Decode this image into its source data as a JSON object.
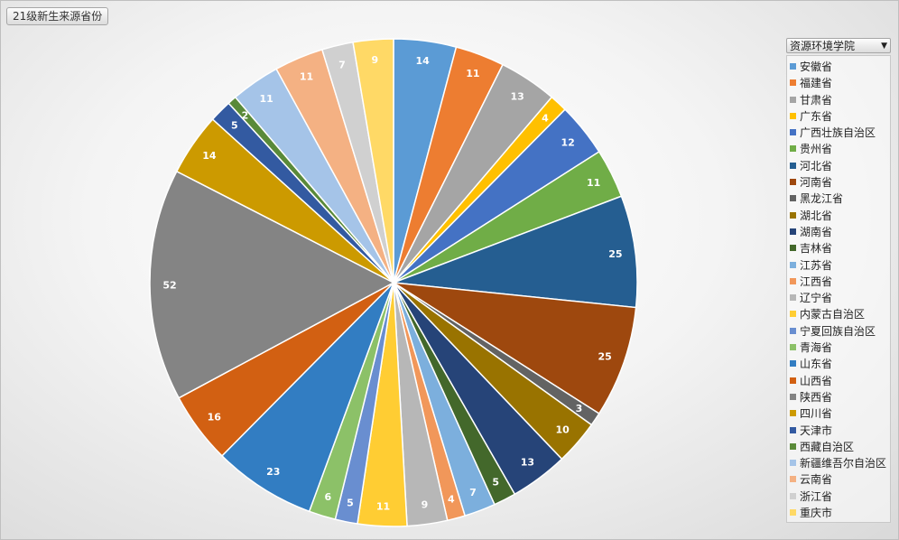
{
  "header": {
    "title": "21级新生来源省份"
  },
  "legend": {
    "filter_label": "资源环境学院"
  },
  "chart_data": {
    "type": "pie",
    "title": "21级新生来源省份",
    "categories": [
      "安徽省",
      "福建省",
      "甘肃省",
      "广东省",
      "广西壮族自治区",
      "贵州省",
      "河北省",
      "河南省",
      "黑龙江省",
      "湖北省",
      "湖南省",
      "吉林省",
      "江苏省",
      "江西省",
      "辽宁省",
      "内蒙古自治区",
      "宁夏回族自治区",
      "青海省",
      "山东省",
      "山西省",
      "陕西省",
      "四川省",
      "天津市",
      "西藏自治区",
      "新疆维吾尔自治区",
      "云南省",
      "浙江省",
      "重庆市"
    ],
    "values": [
      14,
      11,
      13,
      4,
      12,
      11,
      25,
      25,
      3,
      10,
      13,
      5,
      7,
      4,
      9,
      11,
      5,
      6,
      23,
      16,
      52,
      14,
      5,
      2,
      11,
      11,
      7,
      9
    ],
    "colors": [
      "#5b9bd5",
      "#ed7d31",
      "#a5a5a5",
      "#ffc000",
      "#4472c4",
      "#70ad47",
      "#255e91",
      "#9e480e",
      "#636363",
      "#997300",
      "#264478",
      "#43682b",
      "#7cafdd",
      "#f1975a",
      "#b7b7b7",
      "#ffcd33",
      "#698ed0",
      "#8cc168",
      "#327dc2",
      "#d26012",
      "#848484",
      "#cc9a00",
      "#335aa1",
      "#5a8a39",
      "#a5c4e8",
      "#f4b183",
      "#d0d0d0",
      "#ffd966"
    ],
    "legend_position": "right"
  }
}
